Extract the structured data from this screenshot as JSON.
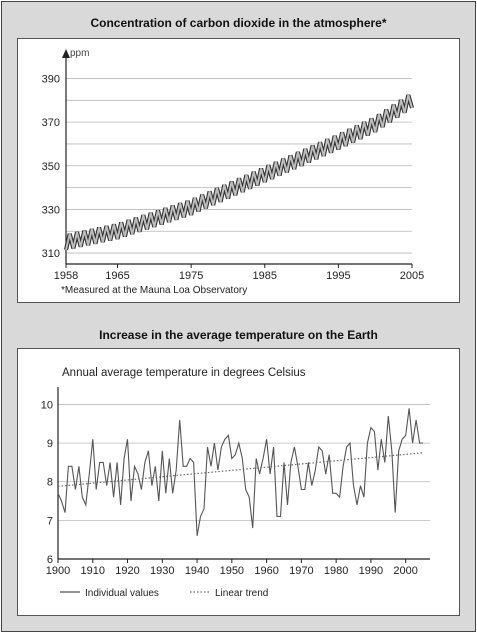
{
  "chart_data": [
    {
      "type": "line",
      "title": "Concentration of carbon dioxide in the atmosphere*",
      "ylabel": "ppm",
      "xlabel": "",
      "xlim": [
        1958,
        2005
      ],
      "ylim": [
        305,
        398
      ],
      "x_ticks": [
        "1958",
        "1965",
        "1975",
        "1985",
        "1995",
        "2005"
      ],
      "y_ticks": [
        "310",
        "330",
        "350",
        "370",
        "390"
      ],
      "grid": true,
      "footnote": "*Measured at the Mauna Loa Observatory",
      "series": [
        {
          "x": [
            1958,
            1965,
            1975,
            1985,
            1995,
            2000,
            2005
          ],
          "y": [
            315,
            320,
            331,
            346,
            361,
            369,
            380
          ],
          "seasonal_amplitude_ppm": 3.5
        }
      ]
    },
    {
      "type": "line",
      "title": "Increase in the average temperature on the Earth",
      "subtitle": "Annual average temperature in degrees Celsius",
      "xlabel": "",
      "ylabel": "",
      "xlim": [
        1900,
        2007
      ],
      "ylim": [
        6,
        10.4
      ],
      "x_ticks": [
        "1900",
        "1910",
        "1920",
        "1930",
        "1940",
        "1950",
        "1960",
        "1970",
        "1980",
        "1990",
        "2000"
      ],
      "y_ticks": [
        "6",
        "7",
        "8",
        "9",
        "10"
      ],
      "grid": true,
      "legend": "bottom",
      "series": [
        {
          "name": "Individual values",
          "x": [
            1900,
            1901,
            1902,
            1903,
            1904,
            1905,
            1906,
            1907,
            1908,
            1909,
            1910,
            1911,
            1912,
            1913,
            1914,
            1915,
            1916,
            1917,
            1918,
            1919,
            1920,
            1921,
            1922,
            1923,
            1924,
            1925,
            1926,
            1927,
            1928,
            1929,
            1930,
            1931,
            1932,
            1933,
            1934,
            1935,
            1936,
            1937,
            1938,
            1939,
            1940,
            1941,
            1942,
            1943,
            1944,
            1945,
            1946,
            1947,
            1948,
            1949,
            1950,
            1951,
            1952,
            1953,
            1954,
            1955,
            1956,
            1957,
            1958,
            1959,
            1960,
            1961,
            1962,
            1963,
            1964,
            1965,
            1966,
            1967,
            1968,
            1969,
            1970,
            1971,
            1972,
            1973,
            1974,
            1975,
            1976,
            1977,
            1978,
            1979,
            1980,
            1981,
            1982,
            1983,
            1984,
            1985,
            1986,
            1987,
            1988,
            1989,
            1990,
            1991,
            1992,
            1993,
            1994,
            1995,
            1996,
            1997,
            1998,
            1999,
            2000,
            2001,
            2002,
            2003,
            2004,
            2005
          ],
          "y": [
            7.7,
            7.5,
            7.2,
            8.4,
            8.4,
            7.8,
            8.4,
            7.6,
            7.4,
            8.2,
            9.1,
            7.8,
            8.5,
            8.5,
            7.9,
            8.5,
            7.6,
            8.5,
            7.4,
            8.6,
            9.1,
            7.5,
            8.4,
            8.2,
            7.8,
            8.5,
            8.8,
            7.9,
            8.4,
            7.5,
            8.8,
            7.7,
            8.6,
            7.7,
            8.3,
            9.6,
            8.4,
            8.4,
            8.6,
            8.5,
            6.6,
            7.1,
            7.3,
            8.9,
            8.4,
            9.0,
            8.3,
            8.9,
            9.1,
            9.2,
            8.6,
            8.7,
            9.0,
            8.6,
            7.8,
            7.6,
            6.8,
            8.6,
            8.2,
            8.6,
            9.1,
            8.2,
            8.9,
            7.1,
            7.1,
            8.5,
            7.4,
            8.5,
            8.9,
            8.4,
            7.8,
            7.8,
            8.5,
            7.9,
            8.3,
            8.9,
            8.8,
            8.2,
            8.7,
            7.7,
            7.7,
            7.6,
            8.4,
            8.9,
            9.0,
            7.9,
            7.4,
            7.9,
            7.6,
            9.0,
            9.4,
            9.3,
            8.3,
            9.1,
            8.5,
            9.7,
            8.8,
            7.2,
            8.8,
            9.1,
            9.2,
            9.9,
            9.0,
            9.6,
            9.0,
            9.0
          ]
        },
        {
          "name": "Linear trend",
          "x": [
            1900,
            2005
          ],
          "y": [
            7.88,
            8.75
          ]
        }
      ]
    }
  ]
}
